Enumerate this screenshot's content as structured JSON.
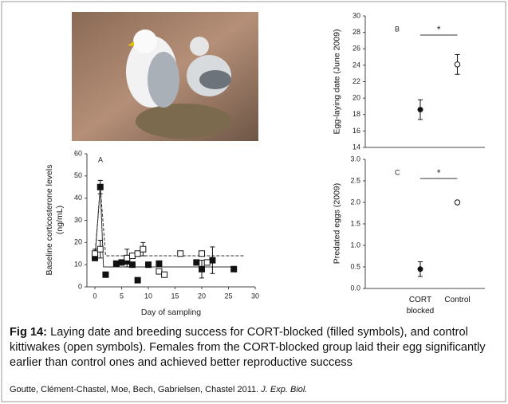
{
  "chart_data": [
    {
      "type": "scatter",
      "panel_label": "A",
      "xlabel": "Day of sampling",
      "ylabel": "Baseline corticosterone levels (ng/mL)",
      "xlim": [
        -1.5,
        30
      ],
      "xticks": [
        0,
        5,
        10,
        15,
        20,
        25,
        30
      ],
      "ylim": [
        0,
        60
      ],
      "yticks": [
        0,
        10,
        20,
        30,
        40,
        50,
        60
      ],
      "series": [
        {
          "marker": "filled",
          "x": [
            0,
            1,
            2,
            4,
            5,
            6,
            7,
            8,
            10,
            12,
            19,
            20,
            22,
            26
          ],
          "values": [
            13,
            45,
            5.5,
            10.5,
            11,
            11.5,
            10,
            3,
            10,
            10.5,
            11,
            8,
            12,
            8
          ],
          "errors": [
            null,
            3,
            null,
            null,
            null,
            null,
            null,
            null,
            null,
            null,
            null,
            4,
            6,
            null
          ]
        },
        {
          "marker": "open",
          "x": [
            0,
            1,
            6,
            7,
            8,
            9,
            12,
            13,
            16,
            20,
            21
          ],
          "values": [
            15,
            17,
            13,
            14,
            15,
            17,
            7,
            5.5,
            15,
            15,
            11
          ],
          "errors": [
            2,
            4,
            4,
            null,
            null,
            3,
            null,
            null,
            null,
            null,
            null
          ]
        }
      ],
      "fit_lines": [
        {
          "style": "dashed",
          "x": [
            0,
            1,
            2,
            28
          ],
          "values": [
            14,
            45,
            14,
            14
          ]
        },
        {
          "style": "solid",
          "x": [
            0,
            1,
            1.6,
            26
          ],
          "values": [
            13,
            45,
            9,
            9
          ]
        }
      ]
    },
    {
      "type": "point",
      "panel_label": "B",
      "ylabel": "Egg-laying date (June 2009)",
      "ylim": [
        14,
        30
      ],
      "yticks": [
        14,
        16,
        18,
        20,
        22,
        24,
        26,
        28,
        30
      ],
      "markers": [
        "filled",
        "open"
      ],
      "values": [
        18.6,
        24.1
      ],
      "errors": [
        1.2,
        1.2
      ],
      "annotation": "*"
    },
    {
      "type": "point",
      "panel_label": "C",
      "ylabel": "Predated eggs (2009)",
      "ylim": [
        0,
        3
      ],
      "yticks": [
        {
          "value": 0,
          "label": "0.0"
        },
        0.5,
        {
          "value": 1,
          "label": "1.0"
        },
        1.5,
        {
          "value": 2,
          "label": "2.0"
        },
        2.5,
        {
          "value": 3,
          "label": "3.0"
        }
      ],
      "categories": [
        "CORT blocked",
        "Control"
      ],
      "markers": [
        "filled",
        "open"
      ],
      "values": [
        0.45,
        2.0
      ],
      "errors": [
        0.17,
        0
      ],
      "annotation": "*"
    }
  ],
  "caption": {
    "label": "Fig 14:",
    "text": "Laying date and breeding success for  CORT-blocked (filled symbols), and control kittiwakes (open symbols). Females from the CORT-blocked group laid their egg significantly earlier than control ones and achieved better reproductive success"
  },
  "citation": {
    "authors": "Goutte, Clément-Chastel, Moe, Bech, Gabrielsen, Chastel 2011.",
    "journal": "J. Exp. Biol."
  }
}
